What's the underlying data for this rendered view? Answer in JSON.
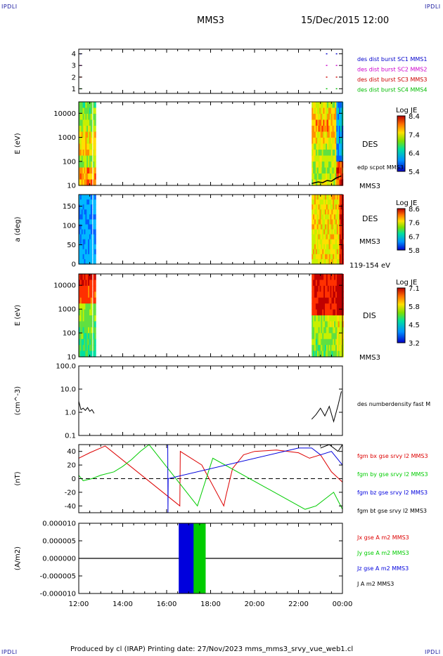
{
  "header": {
    "corner_label": "IPDLI",
    "spacecraft": "MMS3",
    "datetime": "15/Dec/2015 12:00"
  },
  "footer": {
    "text": "Produced by cl (IRAP)   Printing date: 27/Nov/2023   mms_mms3_srvy_vue_web1.cl"
  },
  "colors": {
    "sc1": "#0000cc",
    "sc2": "#cc00cc",
    "sc3": "#cc0000",
    "sc4": "#00bb00",
    "bx": "#dd0000",
    "by": "#00cc00",
    "bz": "#0000dd",
    "bt": "#000000"
  },
  "x_axis": {
    "ticks": [
      "12:00",
      "14:00",
      "16:00",
      "18:00",
      "20:00",
      "22:00",
      "00:00"
    ]
  },
  "chart_data": [
    {
      "type": "scatter",
      "panel": "burst-availability",
      "y_ticks": [
        "1",
        "2",
        "3",
        "4"
      ],
      "ylim": [
        0.6,
        4.4
      ],
      "series": [
        {
          "name": "des dist burst SC1 MMS1",
          "color": "#0000cc"
        },
        {
          "name": "des dist burst SC2 MMS2",
          "color": "#cc00cc"
        },
        {
          "name": "des dist burst SC3 MMS3",
          "color": "#cc0000"
        },
        {
          "name": "des dist burst SC4 MMS4",
          "color": "#00bb00"
        }
      ]
    },
    {
      "type": "heatmap",
      "panel": "des-energy",
      "ylabel": "E (eV)",
      "y_ticks": [
        "10",
        "100",
        "1000",
        "10000"
      ],
      "ylim": [
        10,
        30000
      ],
      "yscale": "log",
      "labels": [
        "DES",
        "edp scpot MMS3",
        "MMS3"
      ],
      "colorbar": {
        "title": "Log JE",
        "ticks": [
          "8.4",
          "7.4",
          "6.4",
          "5.4"
        ],
        "range": [
          5.4,
          8.4
        ]
      }
    },
    {
      "type": "heatmap",
      "panel": "des-pitch",
      "ylabel": "a (deg)",
      "y_ticks": [
        "0",
        "50",
        "100",
        "150"
      ],
      "ylim": [
        0,
        180
      ],
      "labels": [
        "DES",
        "MMS3",
        "119-154 eV"
      ],
      "colorbar": {
        "title": "Log JE",
        "ticks": [
          "8.6",
          "7.6",
          "6.7",
          "5.8"
        ],
        "range": [
          5.8,
          8.6
        ]
      }
    },
    {
      "type": "heatmap",
      "panel": "dis-energy",
      "ylabel": "E (eV)",
      "y_ticks": [
        "10",
        "100",
        "1000",
        "10000"
      ],
      "ylim": [
        10,
        30000
      ],
      "yscale": "log",
      "labels": [
        "DIS",
        "MMS3"
      ],
      "colorbar": {
        "title": "Log JE",
        "ticks": [
          "7.1",
          "5.8",
          "4.5",
          "3.2"
        ],
        "range": [
          3.2,
          7.1
        ]
      }
    },
    {
      "type": "line",
      "panel": "density",
      "ylabel": "(cm^-3)",
      "y_ticks": [
        "0.1",
        "1.0",
        "10.0",
        "100.0"
      ],
      "ylim": [
        0.1,
        100
      ],
      "yscale": "log",
      "series": [
        {
          "name": "des numberdensity fast M",
          "color": "#000000",
          "x": [
            12.0,
            12.1,
            12.2,
            12.3,
            12.4,
            12.5,
            12.6,
            12.7,
            22.6,
            22.8,
            23.0,
            23.2,
            23.4,
            23.6,
            23.8,
            23.95
          ],
          "y": [
            3.0,
            1.3,
            1.5,
            1.2,
            1.6,
            1.1,
            1.3,
            0.9,
            0.5,
            0.8,
            1.5,
            0.7,
            1.8,
            0.4,
            2.0,
            8.0
          ]
        }
      ]
    },
    {
      "type": "line",
      "panel": "magnetic-field",
      "ylabel": "(nT)",
      "y_ticks": [
        "-40",
        "-20",
        "0",
        "20",
        "40"
      ],
      "ylim": [
        -50,
        50
      ],
      "series": [
        {
          "name": "fgm bx gse srvy l2 MMS3",
          "color": "#dd0000",
          "x": [
            12.0,
            12.5,
            13.0,
            13.2,
            16.6,
            16.62,
            17.6,
            18.6,
            18.7,
            19.0,
            19.5,
            20.0,
            21.0,
            22.0,
            22.5,
            23.0,
            23.5,
            24.0
          ],
          "y": [
            30,
            38,
            45,
            48,
            -40,
            40,
            20,
            -40,
            -25,
            15,
            35,
            40,
            42,
            38,
            30,
            35,
            10,
            -5
          ]
        },
        {
          "name": "fgm by gse srvy l2 MMS3",
          "color": "#00cc00",
          "x": [
            12.0,
            12.2,
            12.6,
            13.0,
            13.6,
            14.0,
            14.4,
            14.8,
            15.2,
            17.4,
            18.1,
            22.3,
            22.8,
            23.2,
            23.6,
            24.0
          ],
          "y": [
            5,
            -3,
            0,
            5,
            10,
            18,
            28,
            40,
            50,
            -40,
            30,
            -45,
            -40,
            -30,
            -20,
            -45
          ]
        },
        {
          "name": "fgm bz gse srvy l2 MMS3",
          "color": "#0000dd",
          "x": [
            16.05,
            16.06,
            16.07,
            22.0,
            22.6,
            23.0,
            23.5,
            24.0
          ],
          "y": [
            50,
            -50,
            0,
            45,
            45,
            35,
            40,
            20
          ]
        },
        {
          "name": "fgm bt gse srvy l2 MMS3",
          "color": "#000000",
          "x": [
            23.0,
            23.4,
            23.8,
            24.0
          ],
          "y": [
            45,
            50,
            40,
            50
          ]
        }
      ]
    },
    {
      "type": "line",
      "panel": "current-density",
      "ylabel": "(A/m2)",
      "y_ticks": [
        "-0.000010",
        "-0.000005",
        "0.000000",
        "0.000005",
        "0.000010"
      ],
      "ylim": [
        -1e-05,
        1e-05
      ],
      "series": [
        {
          "name": "Jx gse A m2 MMS3",
          "color": "#dd0000"
        },
        {
          "name": "Jy gse A m2 MMS3",
          "color": "#00cc00"
        },
        {
          "name": "Jz gse A m2 MMS3",
          "color": "#0000dd"
        },
        {
          "name": "J A m2 MMS3",
          "color": "#000000"
        }
      ]
    }
  ]
}
